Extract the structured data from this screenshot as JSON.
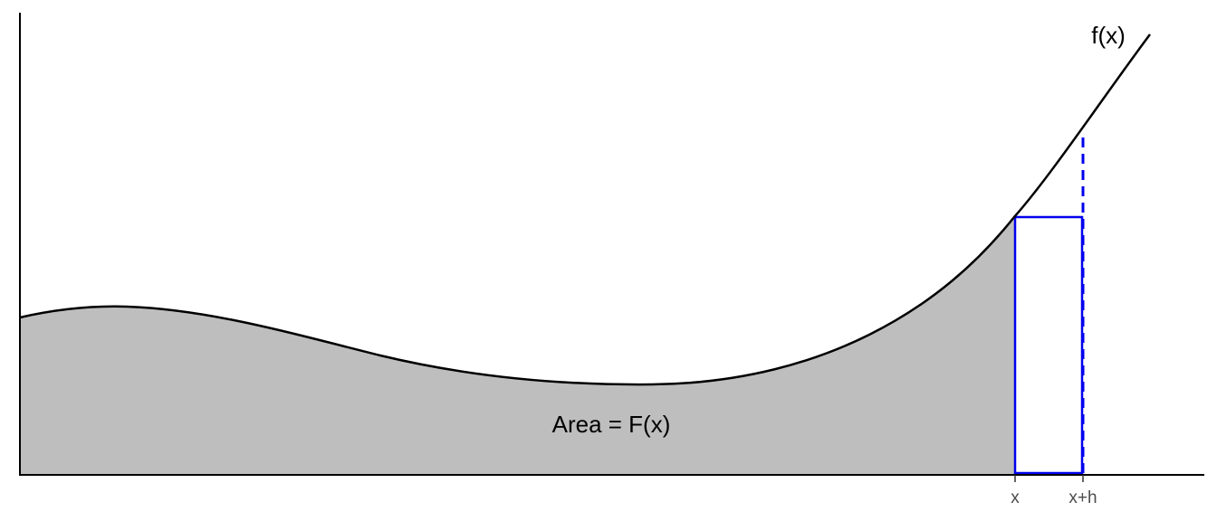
{
  "diagram": {
    "curve_label": "f(x)",
    "area_label": "Area = F(x)",
    "tick_x": "x",
    "tick_x_plus_h": "x+h"
  },
  "colors": {
    "shaded_area": "#bebebe",
    "curve": "#000000",
    "axis": "#000000",
    "rectangle": "#0000ee",
    "dashed_line": "#0000ee",
    "tick_text": "#4d4d4d"
  }
}
